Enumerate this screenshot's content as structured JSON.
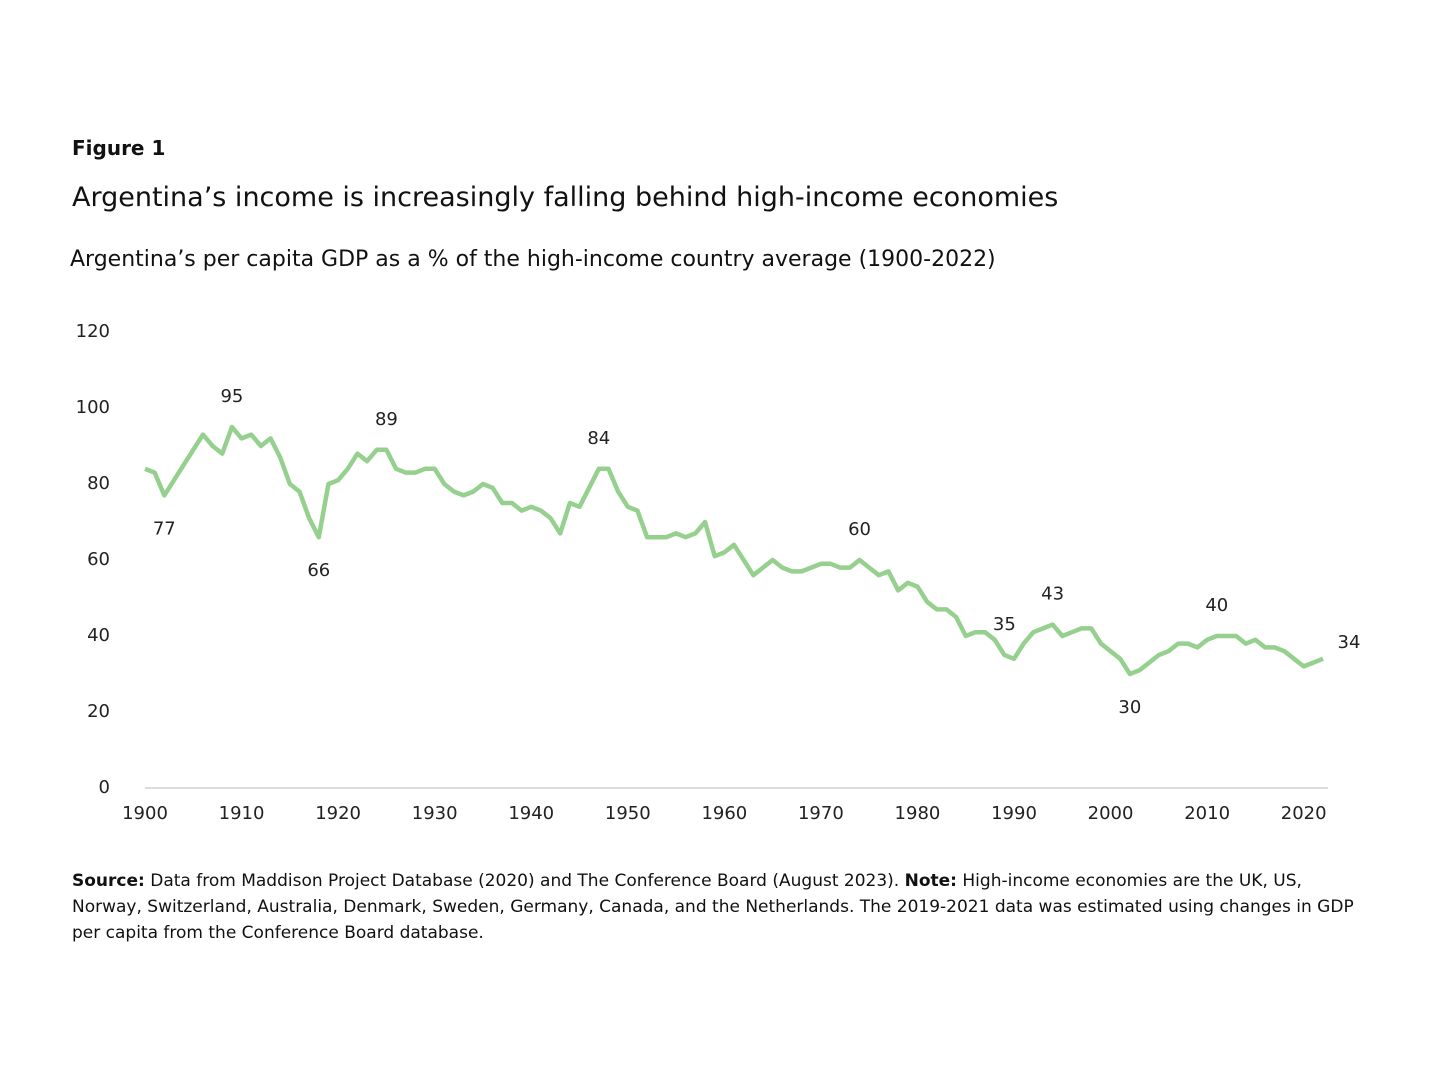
{
  "chart_data": {
    "type": "line",
    "figure_label": "Figure 1",
    "title": "Argentina’s income is increasingly falling behind high-income economies",
    "subtitle": "Argentina’s per capita GDP as a % of the high-income country average (1900-2022)",
    "x": [
      1900,
      1901,
      1902,
      1903,
      1904,
      1905,
      1906,
      1907,
      1908,
      1909,
      1910,
      1911,
      1912,
      1913,
      1914,
      1915,
      1916,
      1917,
      1918,
      1919,
      1920,
      1921,
      1922,
      1923,
      1924,
      1925,
      1926,
      1927,
      1928,
      1929,
      1930,
      1931,
      1932,
      1933,
      1934,
      1935,
      1936,
      1937,
      1938,
      1939,
      1940,
      1941,
      1942,
      1943,
      1944,
      1945,
      1946,
      1947,
      1948,
      1949,
      1950,
      1951,
      1952,
      1953,
      1954,
      1955,
      1956,
      1957,
      1958,
      1959,
      1960,
      1961,
      1962,
      1963,
      1964,
      1965,
      1966,
      1967,
      1968,
      1969,
      1970,
      1971,
      1972,
      1973,
      1974,
      1975,
      1976,
      1977,
      1978,
      1979,
      1980,
      1981,
      1982,
      1983,
      1984,
      1985,
      1986,
      1987,
      1988,
      1989,
      1990,
      1991,
      1992,
      1993,
      1994,
      1995,
      1996,
      1997,
      1998,
      1999,
      2000,
      2001,
      2002,
      2003,
      2004,
      2005,
      2006,
      2007,
      2008,
      2009,
      2010,
      2011,
      2012,
      2013,
      2014,
      2015,
      2016,
      2017,
      2018,
      2019,
      2020,
      2021,
      2022
    ],
    "series": [
      {
        "color": "#96d08e",
        "values": [
          84,
          83,
          77,
          81,
          85,
          89,
          93,
          90,
          88,
          95,
          92,
          93,
          90,
          92,
          87,
          80,
          78,
          71,
          66,
          80,
          81,
          84,
          88,
          86,
          89,
          89,
          84,
          83,
          83,
          84,
          84,
          80,
          78,
          77,
          78,
          80,
          79,
          75,
          75,
          73,
          74,
          73,
          71,
          67,
          75,
          74,
          79,
          84,
          84,
          78,
          74,
          73,
          66,
          66,
          66,
          67,
          66,
          67,
          70,
          61,
          62,
          64,
          60,
          56,
          58,
          60,
          58,
          57,
          57,
          58,
          59,
          59,
          58,
          58,
          60,
          58,
          56,
          57,
          52,
          54,
          53,
          49,
          47,
          47,
          45,
          40,
          41,
          41,
          39,
          35,
          34,
          38,
          41,
          42,
          43,
          40,
          41,
          42,
          42,
          38,
          36,
          34,
          30,
          31,
          33,
          35,
          36,
          38,
          38,
          37,
          39,
          40,
          40,
          40,
          38,
          39,
          37,
          37,
          36,
          34,
          32,
          33,
          34
        ]
      }
    ],
    "annotations": [
      {
        "x": 1902,
        "y": 77
      },
      {
        "x": 1909,
        "y": 95
      },
      {
        "x": 1918,
        "y": 66
      },
      {
        "x": 1925,
        "y": 89
      },
      {
        "x": 1947,
        "y": 84
      },
      {
        "x": 1974,
        "y": 60
      },
      {
        "x": 1989,
        "y": 35
      },
      {
        "x": 1994,
        "y": 43
      },
      {
        "x": 2002,
        "y": 30
      },
      {
        "x": 2011,
        "y": 40
      },
      {
        "x": 2022,
        "y": 34
      }
    ],
    "xlim": [
      1900,
      2022
    ],
    "xticks": [
      1900,
      1910,
      1920,
      1930,
      1940,
      1950,
      1960,
      1970,
      1980,
      1990,
      2000,
      2010,
      2020
    ],
    "ylim": [
      0,
      120
    ],
    "yticks": [
      0,
      20,
      40,
      60,
      80,
      100,
      120
    ],
    "grid": false,
    "footnote": {
      "source_label": "Source:",
      "source_text": "Data from Maddison Project Database (2020) and The Conference Board (August 2023).",
      "note_label": "Note:",
      "note_text": "High-income economies are the UK, US, Norway, Switzerland, Australia, Denmark, Sweden, Germany, Canada, and the Netherlands. The 2019-2021 data was estimated using changes in GDP per capita from the Conference Board database."
    }
  }
}
